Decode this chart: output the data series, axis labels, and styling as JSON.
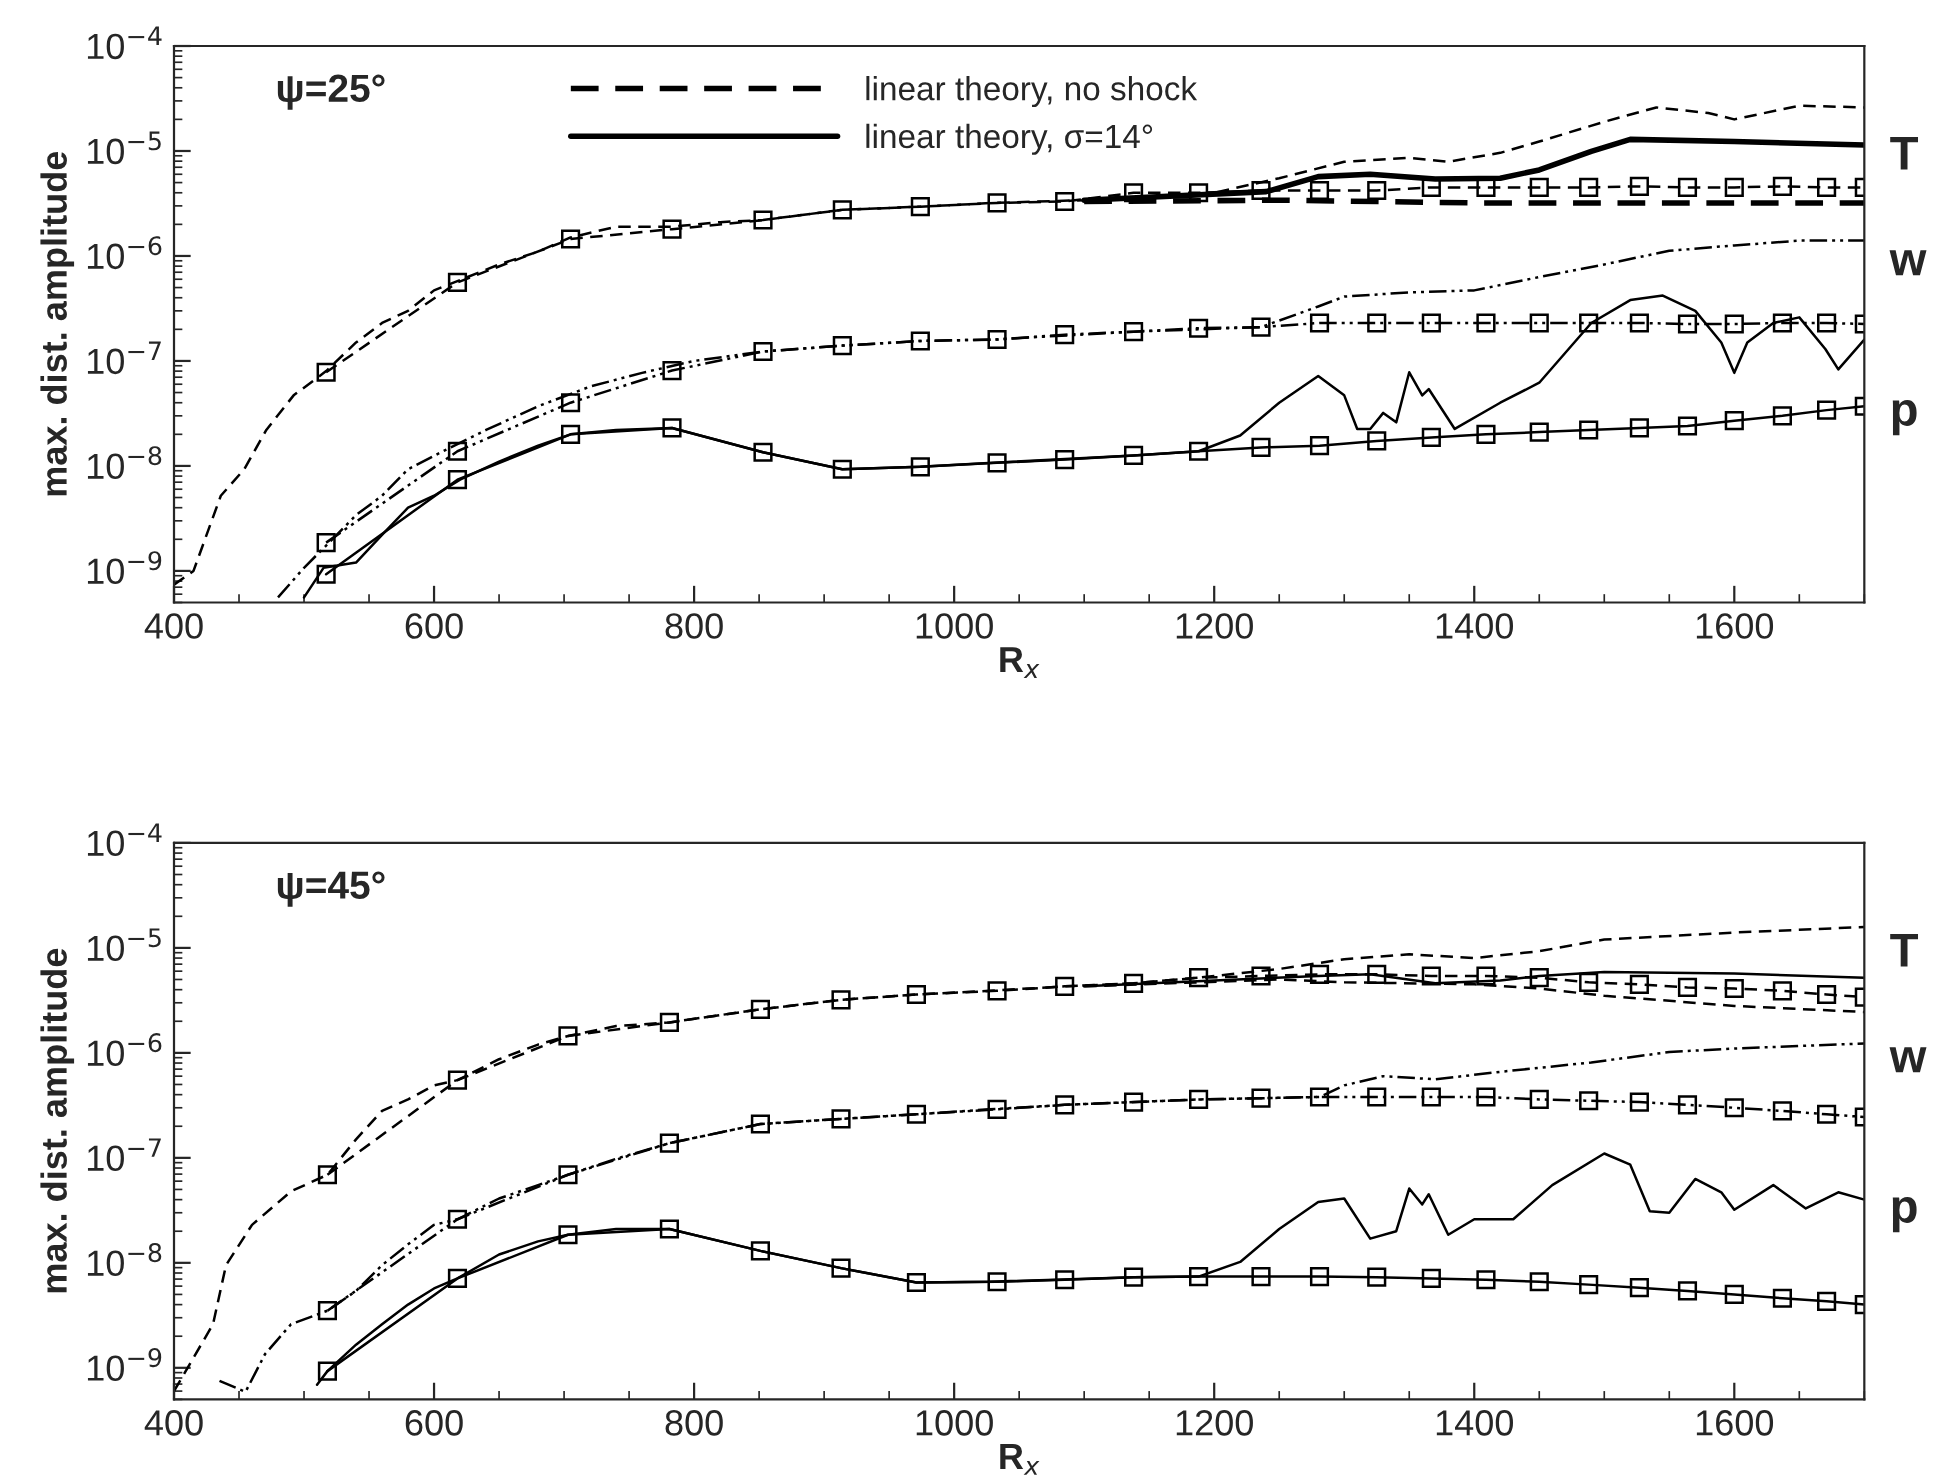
{
  "chart_data": [
    {
      "type": "line",
      "xlabel": "R$_{x}$",
      "ylabel": "max. dist. amplitude",
      "log": "y",
      "xlim": [
        400,
        1700
      ],
      "xticks": [
        400,
        600,
        800,
        1000,
        1200,
        1400,
        1600
      ],
      "ylim": [
        5e-10,
        0.0001
      ],
      "yticks": [
        {
          "value": 1e-09,
          "label": "10$^{−9}$"
        },
        {
          "value": 1e-08,
          "label": "10$^{−8}$"
        },
        {
          "value": 1e-07,
          "label": "10$^{−7}$"
        },
        {
          "value": 1e-06,
          "label": "10$^{−6}$"
        },
        {
          "value": 1e-05,
          "label": "10$^{−5}$"
        },
        {
          "value": 0.0001,
          "label": "10$^{−4}$"
        }
      ],
      "legend": "top",
      "grid": false,
      "annotations": [
        "ψ=25°",
        "T",
        "w",
        "p"
      ],
      "series": [
        {
          "name": "linear theory, no shock",
          "color": "#000000",
          "line_style": "dashed",
          "marker": "none",
          "x": [
            1100,
            1250,
            1400,
            1550,
            1700
          ],
          "values": [
            3.3e-06,
            3.4e-06,
            3.2e-06,
            3.2e-06,
            3.2e-06
          ]
        },
        {
          "name": "linear theory, σ=14°",
          "color": "#000000",
          "line_style": "solid",
          "marker": "none",
          "x": [
            1100,
            1240,
            1280,
            1320,
            1370,
            1420,
            1450,
            1490,
            1520,
            1600,
            1700
          ],
          "values": [
            3.4e-06,
            4.1e-06,
            5.7e-06,
            6e-06,
            5.4e-06,
            5.5e-06,
            6.6e-06,
            9.9e-06,
            1.29e-05,
            1.23e-05,
            1.14e-05
          ]
        },
        {
          "color": "#000000",
          "line_style": "dashed",
          "marker": "square",
          "x": [
            517,
            618,
            705,
            783,
            853,
            914,
            974,
            1033,
            1085,
            1138,
            1188,
            1236,
            1281,
            1325,
            1367,
            1409,
            1450,
            1488,
            1527,
            1564,
            1600,
            1637,
            1671,
            1700
          ],
          "values": [
            7.8e-08,
            5.6e-07,
            1.45e-06,
            1.8e-06,
            2.2e-06,
            2.75e-06,
            2.95e-06,
            3.2e-06,
            3.3e-06,
            4e-06,
            4e-06,
            4.2e-06,
            4.2e-06,
            4.2e-06,
            4.5e-06,
            4.5e-06,
            4.5e-06,
            4.5e-06,
            4.6e-06,
            4.5e-06,
            4.5e-06,
            4.6e-06,
            4.5e-06,
            4.5e-06
          ]
        },
        {
          "color": "#000000",
          "line_style": "dashed",
          "marker": "none",
          "x": [
            400,
            415,
            436,
            454,
            471,
            492,
            517,
            540,
            560,
            580,
            600,
            620,
            650,
            680,
            705,
            740,
            783,
            820,
            853,
            914,
            974,
            1030,
            1100,
            1200,
            1250,
            1300,
            1350,
            1380,
            1420,
            1450,
            1500,
            1540,
            1580,
            1600,
            1650,
            1700
          ],
          "values": [
            7.4e-10,
            1e-09,
            5.2e-09,
            9.3e-09,
            2.2e-08,
            4.7e-08,
            8e-08,
            1.5e-07,
            2.3e-07,
            3e-07,
            4.7e-07,
            5.9e-07,
            8.3e-07,
            1.1e-06,
            1.5e-06,
            1.9e-06,
            1.9e-06,
            2.1e-06,
            2.2e-06,
            2.75e-06,
            2.95e-06,
            3.2e-06,
            3.4e-06,
            4e-06,
            5.5e-06,
            7.9e-06,
            8.6e-06,
            7.9e-06,
            9.6e-06,
            1.23e-05,
            1.9e-05,
            2.6e-05,
            2.3e-05,
            2e-05,
            2.7e-05,
            2.6e-05
          ]
        },
        {
          "color": "#000000",
          "line_style": "dotted",
          "marker": "square",
          "x": [
            517,
            618,
            705,
            783,
            853,
            914,
            974,
            1033,
            1085,
            1138,
            1188,
            1236,
            1281,
            1325,
            1367,
            1409,
            1450,
            1488,
            1527,
            1564,
            1600,
            1637,
            1671,
            1700
          ],
          "values": [
            1.86e-09,
            1.38e-08,
            4e-08,
            8.1e-08,
            1.23e-07,
            1.4e-07,
            1.55e-07,
            1.6e-07,
            1.78e-07,
            1.9e-07,
            2.05e-07,
            2.1e-07,
            2.3e-07,
            2.3e-07,
            2.3e-07,
            2.3e-07,
            2.3e-07,
            2.3e-07,
            2.3e-07,
            2.25e-07,
            2.25e-07,
            2.3e-07,
            2.3e-07,
            2.25e-07
          ]
        },
        {
          "color": "#000000",
          "line_style": "dotted",
          "marker": "none",
          "x": [
            480,
            500,
            520,
            540,
            560,
            580,
            600,
            640,
            680,
            720,
            760,
            800,
            853,
            914,
            974,
            1030,
            1138,
            1236,
            1280,
            1300,
            1350,
            1400,
            1450,
            1500,
            1550,
            1600,
            1650,
            1700
          ],
          "values": [
            5.6e-10,
            1.07e-09,
            1.9e-09,
            3.4e-09,
            5.2e-09,
            9.3e-09,
            1.25e-08,
            2.2e-08,
            3.7e-08,
            5.7e-08,
            7.7e-08,
            1e-07,
            1.23e-07,
            1.4e-07,
            1.55e-07,
            1.6e-07,
            1.9e-07,
            2.1e-07,
            3.3e-07,
            4.1e-07,
            4.5e-07,
            4.7e-07,
            6.3e-07,
            8.3e-07,
            1.12e-06,
            1.26e-06,
            1.4e-06,
            1.4e-06
          ]
        },
        {
          "color": "#000000",
          "line_style": "solid",
          "marker": "square",
          "x": [
            517,
            618,
            705,
            783,
            853,
            914,
            974,
            1033,
            1085,
            1138,
            1188,
            1236,
            1281,
            1325,
            1367,
            1409,
            1450,
            1488,
            1527,
            1564,
            1600,
            1637,
            1671,
            1700
          ],
          "values": [
            9.3e-10,
            7.4e-09,
            2e-08,
            2.3e-08,
            1.35e-08,
            9.3e-09,
            9.8e-09,
            1.07e-08,
            1.15e-08,
            1.26e-08,
            1.38e-08,
            1.5e-08,
            1.56e-08,
            1.73e-08,
            1.87e-08,
            2e-08,
            2.1e-08,
            2.2e-08,
            2.3e-08,
            2.4e-08,
            2.7e-08,
            3e-08,
            3.4e-08,
            3.7e-08
          ]
        },
        {
          "color": "#000000",
          "line_style": "solid",
          "marker": "none",
          "x": [
            500,
            515,
            540,
            560,
            580,
            600,
            620,
            650,
            680,
            705,
            740,
            783,
            853,
            914,
            974,
            1030,
            1138,
            1188,
            1220,
            1250,
            1280,
            1300,
            1310,
            1320,
            1330,
            1340,
            1350,
            1360,
            1365,
            1385,
            1420,
            1450,
            1490,
            1520,
            1545,
            1570,
            1590,
            1600,
            1610,
            1630,
            1650,
            1670,
            1680,
            1700
          ],
          "values": [
            5.6e-10,
            1.07e-09,
            1.2e-09,
            2.2e-09,
            4e-09,
            5.2e-09,
            7.4e-09,
            1.1e-08,
            1.56e-08,
            2e-08,
            2.2e-08,
            2.3e-08,
            1.35e-08,
            9.3e-09,
            9.8e-09,
            1.07e-08,
            1.26e-08,
            1.38e-08,
            1.95e-08,
            4e-08,
            7.2e-08,
            4.7e-08,
            2.25e-08,
            2.25e-08,
            3.2e-08,
            2.6e-08,
            7.8e-08,
            4.7e-08,
            5.4e-08,
            2.25e-08,
            4e-08,
            6.2e-08,
            2.3e-07,
            3.8e-07,
            4.2e-07,
            3e-07,
            1.5e-07,
            7.7e-08,
            1.5e-07,
            2.3e-07,
            2.6e-07,
            1.3e-07,
            8.3e-08,
            1.6e-07
          ]
        }
      ]
    },
    {
      "type": "line",
      "xlabel": "R$_{x}$",
      "ylabel": "max. dist. amplitude",
      "log": "y",
      "xlim": [
        400,
        1700
      ],
      "xticks": [
        400,
        600,
        800,
        1000,
        1200,
        1400,
        1600
      ],
      "ylim": [
        5e-10,
        0.0001
      ],
      "yticks": [
        {
          "value": 1e-09,
          "label": "10$^{−9}$"
        },
        {
          "value": 1e-08,
          "label": "10$^{−8}$"
        },
        {
          "value": 1e-07,
          "label": "10$^{−7}$"
        },
        {
          "value": 1e-06,
          "label": "10$^{−6}$"
        },
        {
          "value": 1e-05,
          "label": "10$^{−5}$"
        },
        {
          "value": 0.0001,
          "label": "10$^{−4}$"
        }
      ],
      "grid": false,
      "annotations": [
        "ψ=45°",
        "T",
        "w",
        "p"
      ],
      "series": [
        {
          "color": "#000000",
          "line_style": "dashed",
          "marker": "none",
          "x": [
            1100,
            1250,
            1300,
            1400,
            1450,
            1500,
            1600,
            1700
          ],
          "values": [
            4.3e-06,
            5e-06,
            4.7e-06,
            4.5e-06,
            4.1e-06,
            3.5e-06,
            2.8e-06,
            2.45e-06
          ]
        },
        {
          "color": "#000000",
          "line_style": "solid",
          "marker": "none",
          "x": [
            1100,
            1200,
            1280,
            1320,
            1370,
            1420,
            1450,
            1500,
            1600,
            1700
          ],
          "values": [
            4.3e-06,
            4.9e-06,
            5.4e-06,
            5.6e-06,
            4.6e-06,
            4.9e-06,
            5.4e-06,
            5.9e-06,
            5.7e-06,
            5.2e-06
          ]
        },
        {
          "color": "#000000",
          "line_style": "dashed",
          "marker": "square",
          "x": [
            518,
            618,
            703,
            781,
            851,
            913,
            971,
            1033,
            1085,
            1138,
            1188,
            1236,
            1281,
            1325,
            1367,
            1409,
            1450,
            1488,
            1527,
            1564,
            1600,
            1637,
            1671,
            1700
          ],
          "values": [
            6.9e-08,
            5.5e-07,
            1.45e-06,
            1.95e-06,
            2.6e-06,
            3.2e-06,
            3.6e-06,
            3.9e-06,
            4.3e-06,
            4.6e-06,
            5.2e-06,
            5.4e-06,
            5.6e-06,
            5.6e-06,
            5.4e-06,
            5.4e-06,
            5.2e-06,
            4.7e-06,
            4.5e-06,
            4.2e-06,
            4.1e-06,
            3.9e-06,
            3.6e-06,
            3.4e-06
          ]
        },
        {
          "color": "#000000",
          "line_style": "dashed",
          "marker": "none",
          "x": [
            400,
            430,
            440,
            460,
            490,
            518,
            540,
            560,
            580,
            600,
            618,
            650,
            680,
            703,
            740,
            781,
            851,
            913,
            971,
            1027,
            1085,
            1138,
            1188,
            1250,
            1300,
            1350,
            1400,
            1450,
            1500,
            1600,
            1700
          ],
          "values": [
            6e-10,
            2.6e-09,
            9.5e-09,
            2.3e-08,
            4.8e-08,
            6.9e-08,
            1.5e-07,
            2.8e-07,
            3.6e-07,
            4.9e-07,
            5.5e-07,
            8.7e-07,
            1.2e-06,
            1.45e-06,
            1.8e-06,
            1.95e-06,
            2.6e-06,
            3.2e-06,
            3.6e-06,
            3.9e-06,
            4.3e-06,
            4.6e-06,
            5.2e-06,
            6.3e-06,
            7.8e-06,
            8.7e-06,
            8e-06,
            9.3e-06,
            1.2e-05,
            1.4e-05,
            1.58e-05
          ]
        },
        {
          "color": "#000000",
          "line_style": "dotted",
          "marker": "square",
          "x": [
            518,
            618,
            703,
            781,
            851,
            913,
            971,
            1033,
            1085,
            1138,
            1188,
            1236,
            1281,
            1325,
            1367,
            1409,
            1450,
            1488,
            1527,
            1564,
            1600,
            1637,
            1671,
            1700
          ],
          "values": [
            3.5e-09,
            2.6e-08,
            6.9e-08,
            1.38e-07,
            2.1e-07,
            2.35e-07,
            2.6e-07,
            2.9e-07,
            3.2e-07,
            3.4e-07,
            3.6e-07,
            3.7e-07,
            3.8e-07,
            3.8e-07,
            3.8e-07,
            3.8e-07,
            3.6e-07,
            3.5e-07,
            3.4e-07,
            3.2e-07,
            3e-07,
            2.8e-07,
            2.6e-07,
            2.45e-07
          ]
        },
        {
          "color": "#000000",
          "line_style": "dotted",
          "marker": "none",
          "x": [
            435,
            455,
            470,
            490,
            518,
            540,
            560,
            580,
            600,
            618,
            650,
            680,
            703,
            740,
            781,
            851,
            913,
            971,
            1027,
            1085,
            1188,
            1236,
            1281,
            1300,
            1330,
            1370,
            1420,
            1490,
            1550,
            1600,
            1700
          ],
          "values": [
            7.5e-10,
            5.9e-10,
            1.35e-09,
            2.6e-09,
            3.5e-09,
            5.4e-09,
            9.5e-09,
            1.5e-08,
            2.3e-08,
            2.6e-08,
            4.1e-08,
            5.5e-08,
            6.9e-08,
            9.8e-08,
            1.38e-07,
            2.1e-07,
            2.35e-07,
            2.6e-07,
            2.9e-07,
            3.2e-07,
            3.6e-07,
            3.7e-07,
            3.8e-07,
            4.9e-07,
            6e-07,
            5.6e-07,
            6.6e-07,
            8.1e-07,
            1.02e-06,
            1.1e-06,
            1.23e-06
          ]
        },
        {
          "color": "#000000",
          "line_style": "solid",
          "marker": "square",
          "x": [
            518,
            618,
            703,
            781,
            851,
            913,
            971,
            1033,
            1085,
            1138,
            1188,
            1236,
            1281,
            1325,
            1367,
            1409,
            1450,
            1488,
            1527,
            1564,
            1600,
            1637,
            1671,
            1700
          ],
          "values": [
            9.3e-10,
            7.1e-09,
            1.85e-08,
            2.1e-08,
            1.3e-08,
            8.9e-09,
            6.5e-09,
            6.6e-09,
            6.9e-09,
            7.3e-09,
            7.4e-09,
            7.4e-09,
            7.4e-09,
            7.3e-09,
            7.1e-09,
            6.9e-09,
            6.6e-09,
            6.2e-09,
            5.8e-09,
            5.4e-09,
            5e-09,
            4.6e-09,
            4.3e-09,
            4e-09
          ]
        },
        {
          "color": "#000000",
          "line_style": "solid",
          "marker": "none",
          "x": [
            510,
            518,
            540,
            560,
            580,
            600,
            618,
            650,
            680,
            703,
            740,
            781,
            851,
            913,
            971,
            1027,
            1138,
            1188,
            1220,
            1250,
            1280,
            1300,
            1320,
            1340,
            1350,
            1360,
            1365,
            1380,
            1400,
            1430,
            1460,
            1500,
            1520,
            1535,
            1550,
            1570,
            1590,
            1600,
            1630,
            1655,
            1680,
            1700
          ],
          "values": [
            6.9e-10,
            9.3e-10,
            1.66e-09,
            2.6e-09,
            4e-09,
            5.7e-09,
            7.1e-09,
            1.2e-08,
            1.6e-08,
            1.85e-08,
            2.1e-08,
            2.1e-08,
            1.3e-08,
            8.9e-09,
            6.5e-09,
            6.6e-09,
            7.3e-09,
            7.4e-09,
            1.02e-08,
            2.1e-08,
            3.8e-08,
            4.1e-08,
            1.7e-08,
            2e-08,
            5.1e-08,
            3.6e-08,
            4.5e-08,
            1.85e-08,
            2.6e-08,
            2.6e-08,
            5.5e-08,
            1.1e-07,
            8.6e-08,
            3.1e-08,
            3e-08,
            6.3e-08,
            4.7e-08,
            3.2e-08,
            5.5e-08,
            3.3e-08,
            4.7e-08,
            4e-08
          ]
        }
      ]
    }
  ]
}
